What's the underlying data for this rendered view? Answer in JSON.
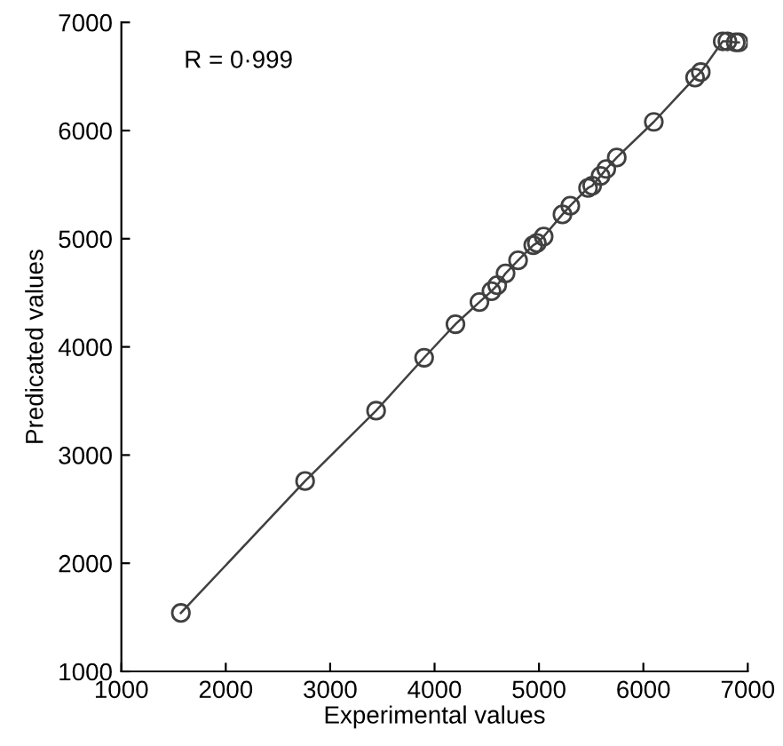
{
  "chart_data": {
    "type": "line",
    "xlabel": "Experimental values",
    "ylabel": "Predicated values",
    "annotations": [
      "R = 0·999"
    ],
    "x": [
      1570,
      2760,
      3440,
      3900,
      4200,
      4430,
      4545,
      4600,
      4680,
      4800,
      4945,
      4980,
      5045,
      5225,
      5300,
      5470,
      5510,
      5590,
      5645,
      5745,
      6100,
      6495,
      6550,
      6760,
      6805,
      6885,
      6915
    ],
    "series": [
      {
        "color": "#404040",
        "values": [
          1540,
          2760,
          3410,
          3900,
          4210,
          4415,
          4515,
          4570,
          4680,
          4800,
          4940,
          4960,
          5020,
          5225,
          5305,
          5470,
          5490,
          5580,
          5645,
          5750,
          6080,
          6490,
          6540,
          6825,
          6825,
          6815,
          6815
        ]
      }
    ],
    "marker": "circle",
    "line_style": "solid",
    "grid": false,
    "legend": false,
    "xlim": [
      1000,
      7000
    ],
    "ylim": [
      1000,
      7000
    ],
    "xticks": [
      1000,
      2000,
      3000,
      4000,
      5000,
      6000,
      7000
    ],
    "yticks": [
      1000,
      2000,
      3000,
      4000,
      5000,
      6000,
      7000
    ]
  }
}
